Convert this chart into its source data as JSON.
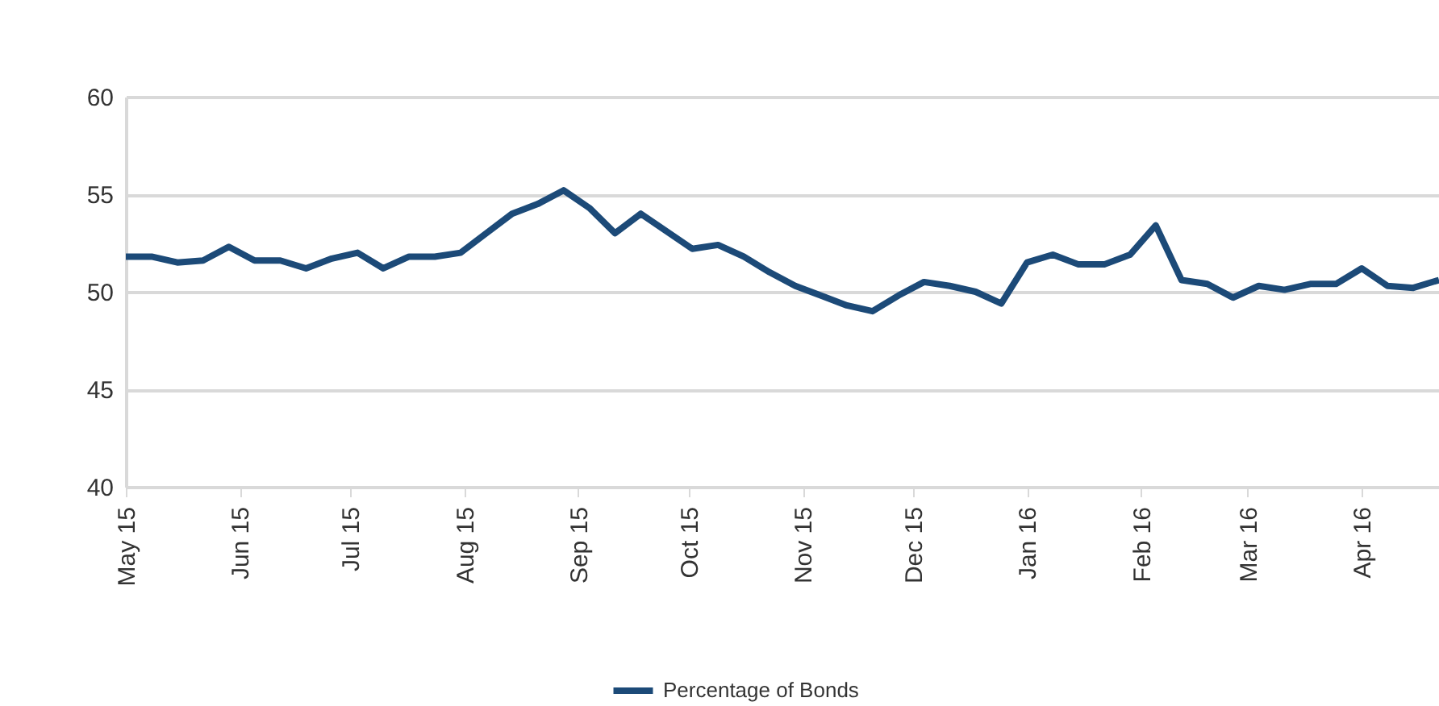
{
  "chart_data": {
    "type": "line",
    "x": [
      "2015-05-01",
      "2015-05-08",
      "2015-05-15",
      "2015-05-22",
      "2015-05-29",
      "2015-06-05",
      "2015-06-12",
      "2015-06-19",
      "2015-06-26",
      "2015-07-03",
      "2015-07-10",
      "2015-07-17",
      "2015-07-24",
      "2015-07-31",
      "2015-08-07",
      "2015-08-14",
      "2015-08-21",
      "2015-08-28",
      "2015-09-04",
      "2015-09-11",
      "2015-09-18",
      "2015-09-25",
      "2015-10-02",
      "2015-10-09",
      "2015-10-16",
      "2015-10-23",
      "2015-10-30",
      "2015-11-06",
      "2015-11-13",
      "2015-11-20",
      "2015-11-27",
      "2015-12-04",
      "2015-12-11",
      "2015-12-18",
      "2015-12-25",
      "2016-01-01",
      "2016-01-08",
      "2016-01-15",
      "2016-01-22",
      "2016-01-29",
      "2016-02-05",
      "2016-02-12",
      "2016-02-19",
      "2016-02-26",
      "2016-03-04",
      "2016-03-11",
      "2016-03-18",
      "2016-03-25",
      "2016-04-01",
      "2016-04-08",
      "2016-04-15",
      "2016-04-22"
    ],
    "series": [
      {
        "name": "Percentage of Bonds",
        "color": "#1c4a78",
        "values": [
          51.8,
          51.8,
          51.5,
          51.6,
          52.3,
          51.6,
          51.6,
          51.2,
          51.7,
          52.0,
          51.2,
          51.8,
          51.8,
          52.0,
          53.0,
          54.0,
          54.5,
          55.2,
          54.3,
          53.0,
          54.0,
          53.1,
          52.2,
          52.4,
          51.8,
          51.0,
          50.3,
          49.8,
          49.3,
          49.0,
          49.8,
          50.5,
          50.3,
          50.0,
          49.4,
          51.5,
          51.9,
          51.4,
          51.4,
          51.9,
          53.4,
          50.6,
          50.4,
          49.7,
          50.3,
          50.1,
          50.4,
          50.4,
          51.2,
          50.3,
          50.2,
          50.6
        ]
      }
    ],
    "xlim": [
      "2015-05-01",
      "2016-04-22"
    ],
    "xticks": [
      {
        "value": "2015-05-01",
        "label": "May 15"
      },
      {
        "value": "2015-06-01",
        "label": "Jun 15"
      },
      {
        "value": "2015-07-01",
        "label": "Jul 15"
      },
      {
        "value": "2015-08-01",
        "label": "Aug 15"
      },
      {
        "value": "2015-09-01",
        "label": "Sep 15"
      },
      {
        "value": "2015-10-01",
        "label": "Oct 15"
      },
      {
        "value": "2015-11-01",
        "label": "Nov 15"
      },
      {
        "value": "2015-12-01",
        "label": "Dec 15"
      },
      {
        "value": "2016-01-01",
        "label": "Jan 16"
      },
      {
        "value": "2016-02-01",
        "label": "Feb 16"
      },
      {
        "value": "2016-03-01",
        "label": "Mar 16"
      },
      {
        "value": "2016-04-01",
        "label": "Apr 16"
      }
    ],
    "ylim": [
      40,
      60
    ],
    "yticks": [
      40,
      45,
      50,
      55,
      60
    ],
    "grid": "y",
    "legend": "bottom",
    "marker": "none",
    "line_style": "solid"
  }
}
